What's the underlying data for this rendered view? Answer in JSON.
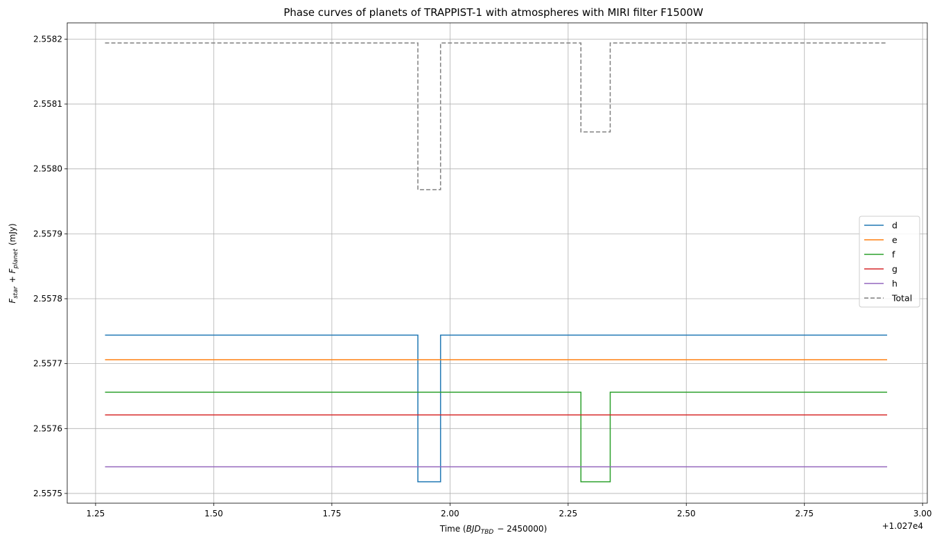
{
  "chart_data": {
    "type": "line",
    "title": "Phase curves of planets of TRAPPIST-1 with atmospheres with MIRI filter F1500W",
    "xlabel": "Time ($BJD_{TBD} - 2450000$)",
    "ylabel": "$F_{star}$ + $F_{planet}$ (mJy)",
    "x_offset_label": "+1.027e4",
    "xlim": [
      1.19,
      3.01
    ],
    "ylim": [
      2.557485,
      2.558225
    ],
    "x_ticks": [
      1.25,
      1.5,
      1.75,
      2.0,
      2.25,
      2.5,
      2.75,
      3.0
    ],
    "x_tick_labels": [
      "1.25",
      "1.50",
      "1.75",
      "2.00",
      "2.25",
      "2.50",
      "2.75",
      "3.00"
    ],
    "y_ticks": [
      2.5575,
      2.5576,
      2.5577,
      2.5578,
      2.5579,
      2.558,
      2.5581,
      2.5582
    ],
    "y_tick_labels": [
      "2.5575",
      "2.5576",
      "2.5577",
      "2.5578",
      "2.5579",
      "2.5580",
      "2.5581",
      "2.5582"
    ],
    "grid": true,
    "legend_position": "center-right",
    "series": [
      {
        "name": "d",
        "color": "#1f77b4",
        "dash": "solid",
        "points": [
          [
            1.27,
            2.557744
          ],
          [
            1.932,
            2.557744
          ],
          [
            1.932,
            2.557518
          ],
          [
            1.98,
            2.557518
          ],
          [
            1.98,
            2.557744
          ],
          [
            2.925,
            2.557744
          ]
        ]
      },
      {
        "name": "e",
        "color": "#ff7f0e",
        "dash": "solid",
        "points": [
          [
            1.27,
            2.557706
          ],
          [
            2.925,
            2.557706
          ]
        ]
      },
      {
        "name": "f",
        "color": "#2ca02c",
        "dash": "solid",
        "points": [
          [
            1.27,
            2.557656
          ],
          [
            2.277,
            2.557656
          ],
          [
            2.277,
            2.557518
          ],
          [
            2.339,
            2.557518
          ],
          [
            2.339,
            2.557656
          ],
          [
            2.925,
            2.557656
          ]
        ]
      },
      {
        "name": "g",
        "color": "#d62728",
        "dash": "solid",
        "points": [
          [
            1.27,
            2.557621
          ],
          [
            2.925,
            2.557621
          ]
        ]
      },
      {
        "name": "h",
        "color": "#9467bd",
        "dash": "solid",
        "points": [
          [
            1.27,
            2.557541
          ],
          [
            2.925,
            2.557541
          ]
        ]
      },
      {
        "name": "Total",
        "color": "#7f7f7f",
        "dash": "dashed",
        "points": [
          [
            1.27,
            2.558194
          ],
          [
            1.932,
            2.558194
          ],
          [
            1.932,
            2.557968
          ],
          [
            1.98,
            2.557968
          ],
          [
            1.98,
            2.558194
          ],
          [
            2.277,
            2.558194
          ],
          [
            2.277,
            2.558057
          ],
          [
            2.339,
            2.558057
          ],
          [
            2.339,
            2.558194
          ],
          [
            2.925,
            2.558194
          ]
        ]
      }
    ]
  }
}
